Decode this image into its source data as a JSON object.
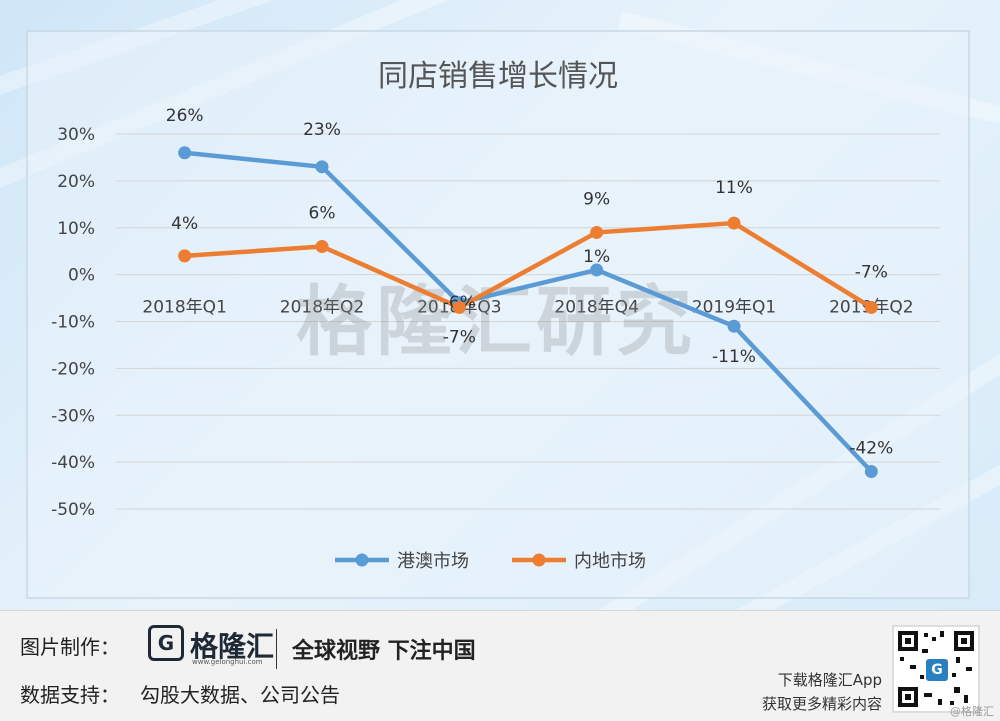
{
  "chart_data": {
    "type": "line",
    "title": "同店销售增长情况",
    "categories": [
      "2018年Q1",
      "2018年Q2",
      "2018年Q3",
      "2018年Q4",
      "2019年Q1",
      "2019年Q2"
    ],
    "series": [
      {
        "name": "港澳市场",
        "color": "#5b9bd5",
        "values": [
          26,
          23,
          -6,
          1,
          -11,
          -42
        ],
        "labels": [
          "26%",
          "23%",
          "-6%",
          "1%",
          "-11%",
          "-42%"
        ]
      },
      {
        "name": "内地市场",
        "color": "#ed7d31",
        "values": [
          4,
          6,
          -7,
          9,
          11,
          -7
        ],
        "labels": [
          "4%",
          "6%",
          "-7%",
          "9%",
          "11%",
          "-7%"
        ]
      }
    ],
    "ylim": [
      -50,
      30
    ],
    "yticks": [
      30,
      20,
      10,
      0,
      -10,
      -20,
      -30,
      -40,
      -50
    ],
    "ytick_labels": [
      "30%",
      "20%",
      "10%",
      "0%",
      "-10%",
      "-20%",
      "-30%",
      "-40%",
      "-50%"
    ],
    "grid": true,
    "legend": "bottom-center"
  },
  "watermark": "格隆汇研究",
  "footer": {
    "credit_label": "图片制作：",
    "logo_glyph": "G",
    "logo_name": "格隆汇",
    "logo_url": "www.gelonghui.com",
    "slogan": "全球视野 下注中国",
    "source_label": "数据支持：",
    "source_text": "勾股大数据、公司公告",
    "app_line1": "下载格隆汇App",
    "app_line2": "获取更多精彩内容",
    "qr_badge": "G",
    "corner_mark": "@格隆汇"
  }
}
